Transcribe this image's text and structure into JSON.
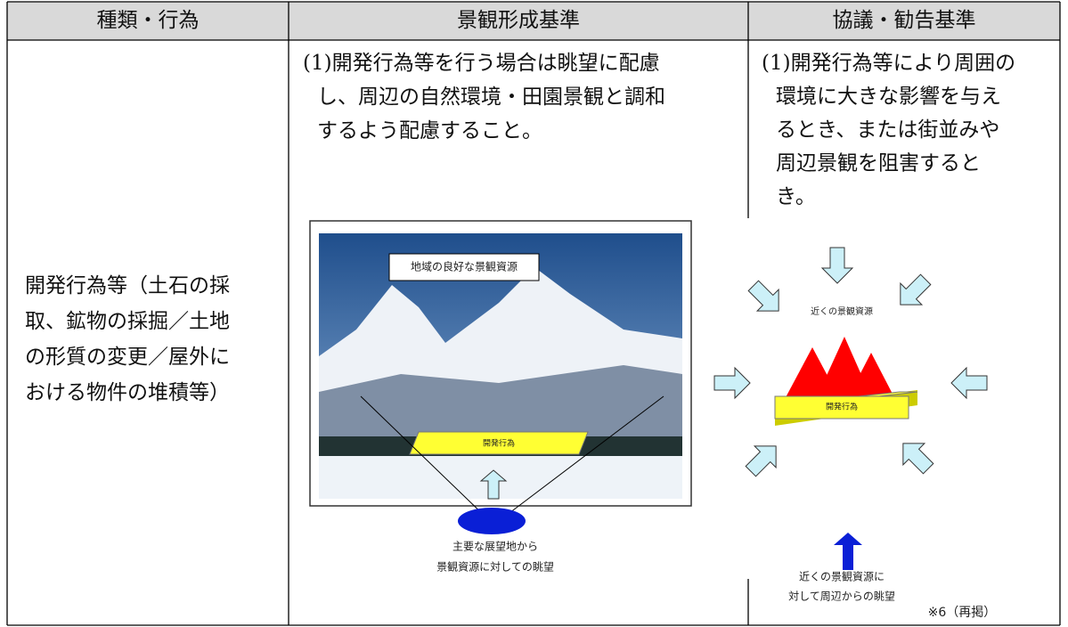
{
  "table": {
    "headers": [
      "種類・行為",
      "景観形成基準",
      "協議・勧告基準"
    ],
    "rows": [
      [
        [
          "開発行為等（土石の採",
          "取、鉱物の採掘／土地",
          "の形質の変更／屋外に",
          "おける物件の堆積等）"
        ],
        [
          "(1)開発行為等を行う場合は眺望に配慮",
          "し、周辺の自然環境・田園景観と調和",
          "するよう配慮すること。"
        ],
        [
          "(1)開発行為等により周囲の",
          "環境に大きな影響を与え",
          "るとき、または街並みや",
          "周辺景観を阻害すると",
          "き。"
        ]
      ]
    ]
  },
  "figures": {
    "left": {
      "label": "地域の良好な景観資源",
      "development": "開発行為",
      "caption": [
        "主要な展望地から",
        "景観資源に対しての眺望"
      ]
    },
    "right": {
      "label": "近くの景観資源",
      "development": "開発行為",
      "caption": [
        "近くの景観資源に",
        "対して周辺からの眺望"
      ]
    },
    "note": "※6（再掲）"
  }
}
